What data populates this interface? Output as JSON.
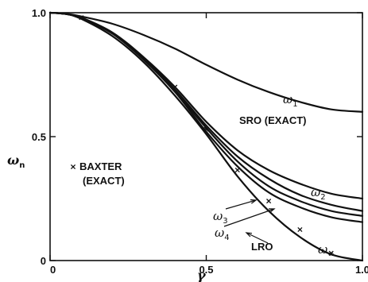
{
  "chart_data": {
    "type": "line",
    "xlabel": "γ",
    "ylabel": "ω",
    "ylabel_sub": "n",
    "xlim": [
      0,
      1.0
    ],
    "ylim": [
      0,
      1.0
    ],
    "x_ticks": [
      0,
      0.5,
      1.0
    ],
    "x_tick_labels": [
      "0",
      "0.5",
      "1.0"
    ],
    "y_ticks": [
      0,
      0.5,
      1.0
    ],
    "y_tick_labels": [
      "0",
      "0.5",
      "1.0"
    ],
    "grid": false,
    "series": [
      {
        "name": "ω1",
        "label_main": "ω",
        "label_sub": "1",
        "x": [
          0,
          0.05,
          0.1,
          0.2,
          0.3,
          0.4,
          0.5,
          0.6,
          0.7,
          0.8,
          0.9,
          1.0
        ],
        "y": [
          1.0,
          0.996,
          0.985,
          0.955,
          0.91,
          0.855,
          0.79,
          0.73,
          0.68,
          0.64,
          0.61,
          0.6
        ]
      },
      {
        "name": "ω2",
        "label_main": "ω",
        "label_sub": "2",
        "x": [
          0,
          0.05,
          0.1,
          0.2,
          0.3,
          0.4,
          0.5,
          0.6,
          0.7,
          0.8,
          0.9,
          1.0
        ],
        "y": [
          1.0,
          0.995,
          0.98,
          0.92,
          0.82,
          0.7,
          0.56,
          0.445,
          0.365,
          0.31,
          0.27,
          0.25
        ]
      },
      {
        "name": "ω3",
        "label_main": "ω",
        "label_sub": "3",
        "x": [
          0,
          0.05,
          0.1,
          0.2,
          0.3,
          0.4,
          0.5,
          0.6,
          0.7,
          0.8,
          0.9,
          1.0
        ],
        "y": [
          1.0,
          0.995,
          0.98,
          0.918,
          0.815,
          0.69,
          0.545,
          0.42,
          0.33,
          0.265,
          0.225,
          0.2
        ]
      },
      {
        "name": "ω4",
        "label_main": "ω",
        "label_sub": "4",
        "x": [
          0,
          0.05,
          0.1,
          0.2,
          0.3,
          0.4,
          0.5,
          0.6,
          0.7,
          0.8,
          0.9,
          1.0
        ],
        "y": [
          1.0,
          0.995,
          0.978,
          0.916,
          0.812,
          0.685,
          0.535,
          0.4,
          0.3,
          0.24,
          0.2,
          0.18
        ]
      },
      {
        "name": "LRO",
        "label_main": "LRO",
        "label_sub": "",
        "x": [
          0,
          0.05,
          0.1,
          0.2,
          0.3,
          0.4,
          0.5,
          0.6,
          0.7,
          0.8,
          0.9,
          1.0
        ],
        "y": [
          1.0,
          0.995,
          0.978,
          0.915,
          0.81,
          0.68,
          0.52,
          0.38,
          0.275,
          0.215,
          0.175,
          0.155
        ]
      },
      {
        "name": "ω∞",
        "label_main": "ω",
        "label_sub": "∞",
        "x": [
          0,
          0.05,
          0.1,
          0.2,
          0.3,
          0.4,
          0.5,
          0.6,
          0.7,
          0.8,
          0.9,
          1.0
        ],
        "y": [
          1.0,
          0.995,
          0.975,
          0.905,
          0.8,
          0.665,
          0.51,
          0.34,
          0.2,
          0.095,
          0.025,
          0.0
        ]
      }
    ],
    "baxter_points": {
      "x": [
        0.1,
        0.4,
        0.5,
        0.6,
        0.7,
        0.8,
        0.9
      ],
      "y": [
        0.98,
        0.7,
        0.53,
        0.365,
        0.24,
        0.125,
        0.03
      ]
    },
    "annotations": {
      "sro": "SRO (EXACT)",
      "baxter_line1": "BAXTER",
      "baxter_line2": "(EXACT)"
    }
  }
}
